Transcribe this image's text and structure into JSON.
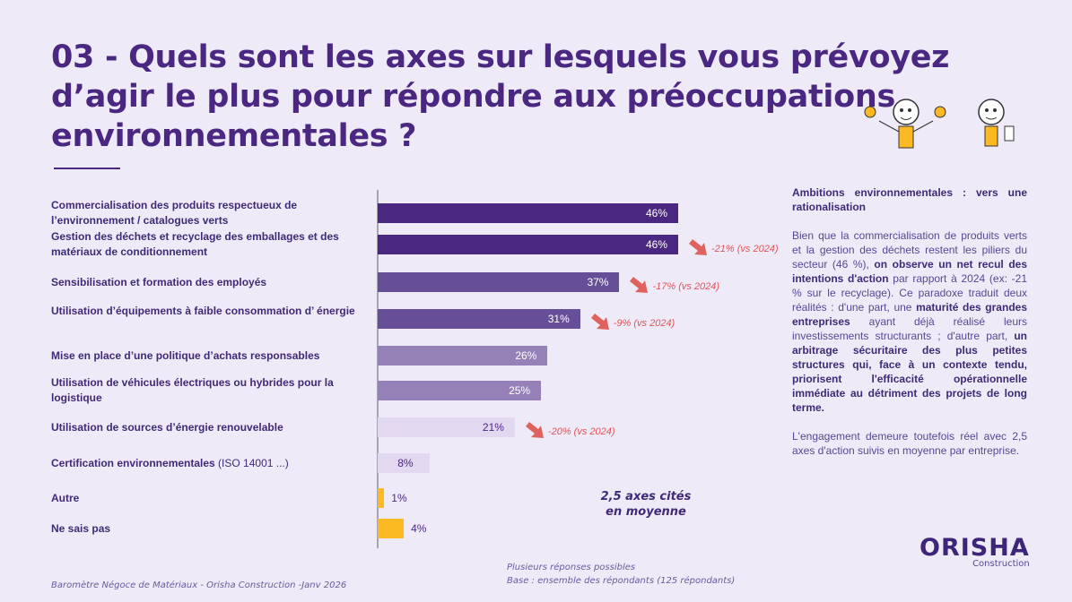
{
  "title": "03 - Quels sont les axes sur lesquels vous prévoyez d’agir le plus pour répondre aux préoccupations environnementales ?",
  "chart_data": {
    "type": "bar",
    "orientation": "horizontal",
    "categories": [
      {
        "label": "Commercialisation des produits respectueux de l’environnement / catalogues verts",
        "suffix": ""
      },
      {
        "label": "Gestion des déchets et recyclage des emballages et des matériaux de conditionnement",
        "suffix": ""
      },
      {
        "label": "Sensibilisation et formation des employés",
        "suffix": ""
      },
      {
        "label": "Utilisation d’équipements à faible consommation d’ énergie",
        "suffix": ""
      },
      {
        "label": "Mise en place d’une politique d’achats responsables",
        "suffix": ""
      },
      {
        "label": "Utilisation de véhicules électriques ou hybrides pour la logistique",
        "suffix": ""
      },
      {
        "label": "Utilisation de sources d’énergie renouvelable",
        "suffix": ""
      },
      {
        "label": "Certification environnementales",
        "suffix": " (ISO 14001 ...)"
      },
      {
        "label": "Autre",
        "suffix": ""
      },
      {
        "label": "Ne sais pas",
        "suffix": ""
      }
    ],
    "values": [
      46,
      46,
      37,
      31,
      26,
      25,
      21,
      8,
      1,
      4
    ],
    "value_labels": [
      "46%",
      "46%",
      "37%",
      "31%",
      "26%",
      "25%",
      "21%",
      "8%",
      "1%",
      "4%"
    ],
    "bar_colors": [
      "#4a2882",
      "#4a2882",
      "#674f98",
      "#674f98",
      "#9580b8",
      "#9580b8",
      "#e2d8f0",
      "#e2d8f0",
      "#fdb922",
      "#fdb922"
    ],
    "label_colors": [
      "#ffffff",
      "#ffffff",
      "#ffffff",
      "#ffffff",
      "#ffffff",
      "#ffffff",
      "#4a2882",
      "#4a2882",
      "#4a2882",
      "#4a2882"
    ],
    "annotations": [
      {
        "index": 1,
        "text": "-21% (vs 2024)"
      },
      {
        "index": 2,
        "text": "-17% (vs 2024)"
      },
      {
        "index": 3,
        "text": "-9% (vs 2024)"
      },
      {
        "index": 6,
        "text": "-20% (vs 2024)"
      }
    ],
    "annotation_color": "#e0625f",
    "xlim": [
      0,
      50
    ]
  },
  "average_note": [
    "2,5 axes cités",
    "en moyenne"
  ],
  "side": {
    "heading": "Ambitions environnementales : vers une rationalisation",
    "p1_a": "Bien que la commercialisation de produits verts et la gestion des déchets restent les piliers du secteur (46 %), ",
    "p1_b": "on observe un net recul des intentions d'action",
    "p1_c": " par rapport à 2024 (ex: -21 % sur le recyclage). Ce paradoxe traduit deux réalités : d'une part, une ",
    "p1_d": "maturité des grandes entreprises",
    "p1_e": " ayant déjà réalisé leurs investissements structurants ; d'autre part, ",
    "p1_f": "un arbitrage sécuritaire des plus petites structures qui, face à un contexte tendu, priorisent l'efficacité opérationnelle immédiate au détriment des projets de long terme.",
    "p2": "L'engagement demeure toutefois réel avec 2,5 axes d'action suivis en moyenne par entreprise."
  },
  "notes": [
    "Plusieurs réponses possibles",
    "Base : ensemble des répondants (125 répondants)"
  ],
  "footer": "Baromètre Négoce de Matériaux - Orisha Construction -Janv 2026",
  "logo": {
    "brand": "ORISHA",
    "sub": "Construction"
  }
}
